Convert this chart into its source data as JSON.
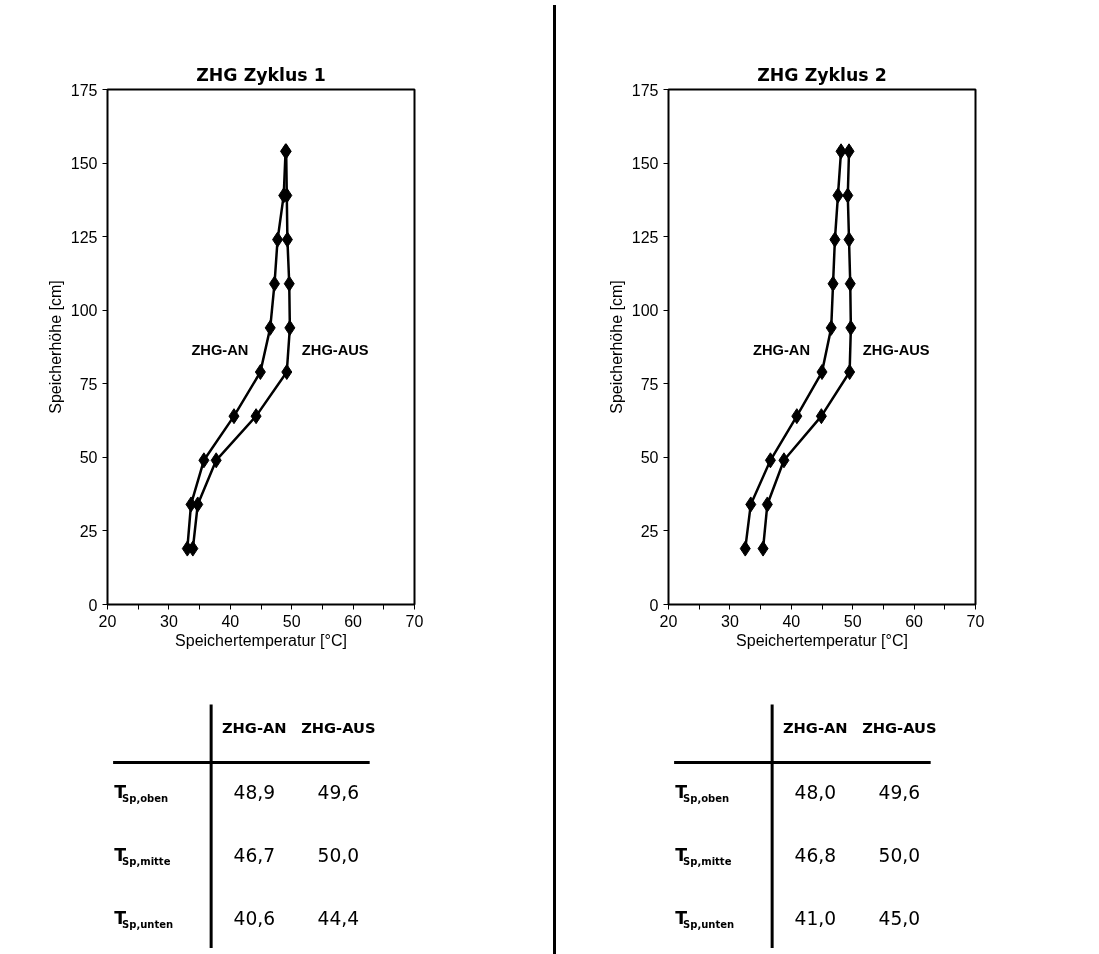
{
  "chart_data": [
    {
      "type": "line",
      "title": "ZHG Zyklus 1",
      "xlabel": "Speichertemperatur [°C]",
      "ylabel": "Speicherhöhe [cm]",
      "xlim": [
        20,
        70
      ],
      "ylim": [
        0,
        175
      ],
      "xticks": [
        20,
        {
          "value": 25,
          "label": null
        },
        30,
        {
          "value": 35,
          "label": null
        },
        40,
        {
          "value": 45,
          "label": null
        },
        50,
        {
          "value": 55,
          "label": null
        },
        60,
        {
          "value": 65,
          "label": null
        },
        70
      ],
      "yticks": [
        0,
        25,
        50,
        75,
        100,
        125,
        150,
        175
      ],
      "grid": false,
      "marker": "diamond",
      "line_style": "solid",
      "series": [
        {
          "name": "ZHG-AN",
          "color": "#000000",
          "x": [
            33.0,
            33.6,
            35.7,
            40.6,
            44.9,
            46.5,
            47.2,
            47.7,
            48.7,
            49.0
          ],
          "values": [
            19,
            34,
            49,
            64,
            79,
            94,
            109,
            124,
            139,
            154
          ]
        },
        {
          "name": "ZHG-AUS",
          "color": "#000000",
          "x": [
            33.9,
            34.7,
            37.7,
            44.2,
            49.2,
            49.7,
            49.6,
            49.3,
            49.2,
            49.1
          ],
          "values": [
            19,
            34,
            49,
            64,
            79,
            94,
            109,
            124,
            139,
            154
          ]
        }
      ]
    },
    {
      "type": "other",
      "categories": [
        "ZHG-AN",
        "ZHG-AUS"
      ],
      "y_categories": [
        "T$_{Sp,oben}$",
        "T$_{Sp,mitte}$",
        "T$_{Sp,unten}$"
      ],
      "cell_labels": [
        [
          "48,9",
          "49,6"
        ],
        [
          "46,7",
          "50,0"
        ],
        [
          "40,6",
          "44,4"
        ]
      ]
    },
    {
      "type": "line",
      "title": "ZHG Zyklus 2",
      "xlabel": "Speichertemperatur [°C]",
      "ylabel": "Speicherhöhe [cm]",
      "xlim": [
        20,
        70
      ],
      "ylim": [
        0,
        175
      ],
      "xticks": [
        20,
        {
          "value": 25,
          "label": null
        },
        30,
        {
          "value": 35,
          "label": null
        },
        40,
        {
          "value": 45,
          "label": null
        },
        50,
        {
          "value": 55,
          "label": null
        },
        60,
        {
          "value": 65,
          "label": null
        },
        70
      ],
      "yticks": [
        0,
        25,
        50,
        75,
        100,
        125,
        150,
        175
      ],
      "grid": false,
      "marker": "diamond",
      "line_style": "solid",
      "series": [
        {
          "name": "ZHG-AN",
          "color": "#000000",
          "x": [
            32.5,
            33.4,
            36.6,
            40.9,
            45.0,
            46.5,
            46.8,
            47.1,
            47.6,
            48.1
          ],
          "values": [
            19,
            34,
            49,
            64,
            79,
            94,
            109,
            124,
            139,
            154
          ]
        },
        {
          "name": "ZHG-AUS",
          "color": "#000000",
          "x": [
            35.4,
            36.1,
            38.8,
            44.9,
            49.5,
            49.7,
            49.6,
            49.4,
            49.2,
            49.4
          ],
          "values": [
            19,
            34,
            49,
            64,
            79,
            94,
            109,
            124,
            139,
            154
          ]
        }
      ]
    },
    {
      "type": "other",
      "categories": [
        "ZHG-AN",
        "ZHG-AUS"
      ],
      "y_categories": [
        "T$_{Sp,oben}$",
        "T$_{Sp,mitte}$",
        "T$_{Sp,unten}$"
      ],
      "cell_labels": [
        [
          "48,0",
          "49,6"
        ],
        [
          "46,8",
          "50,0"
        ],
        [
          "41,0",
          "45,0"
        ]
      ]
    }
  ]
}
